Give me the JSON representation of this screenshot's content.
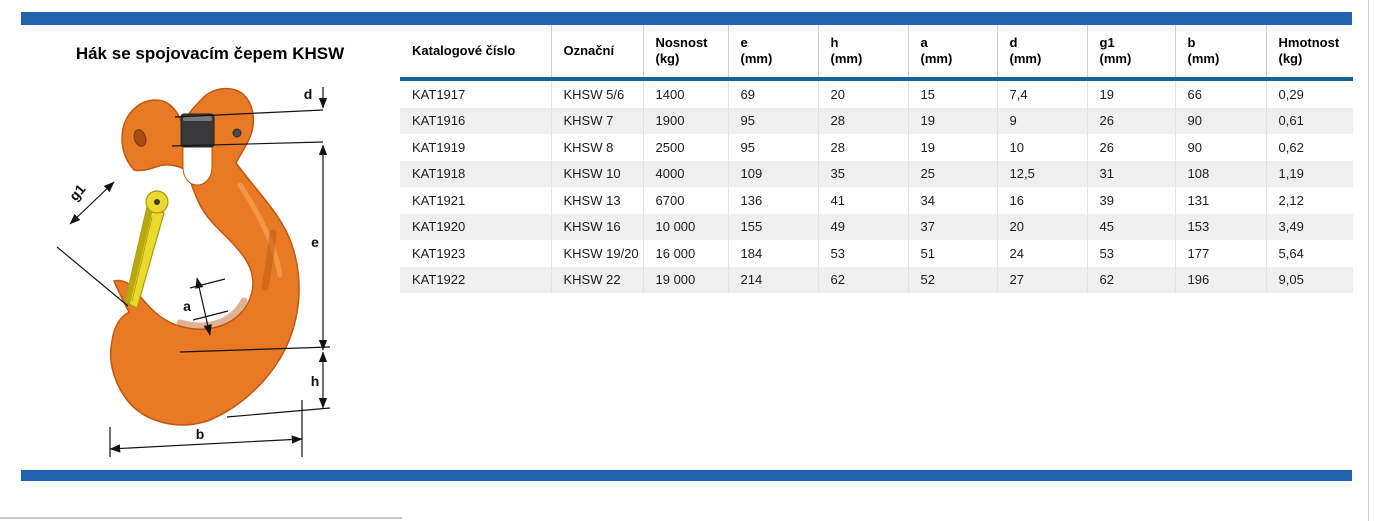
{
  "page": {
    "title": "Hák se spojovacím čepem KHSW"
  },
  "diagram": {
    "description": "orange clevis sling hook with yellow safety latch and dimension arrows",
    "dimension_labels": {
      "d": "d",
      "g1": "g1",
      "e": "e",
      "a": "a",
      "h": "h",
      "b": "b"
    }
  },
  "table": {
    "columns": [
      {
        "label": "Katalogové číslo",
        "unit": ""
      },
      {
        "label": "Označní",
        "unit": ""
      },
      {
        "label": "Nosnost",
        "unit": "(kg)"
      },
      {
        "label": "e",
        "unit": "(mm)"
      },
      {
        "label": "h",
        "unit": "(mm)"
      },
      {
        "label": "a",
        "unit": "(mm)"
      },
      {
        "label": "d",
        "unit": "(mm)"
      },
      {
        "label": "g1",
        "unit": "(mm)"
      },
      {
        "label": "b",
        "unit": "(mm)"
      },
      {
        "label": "Hmotnost",
        "unit": "(kg)"
      }
    ],
    "rows": [
      [
        "KAT1917",
        "KHSW 5/6",
        "1400",
        "69",
        "20",
        "15",
        "7,4",
        "19",
        "66",
        "0,29"
      ],
      [
        "KAT1916",
        "KHSW 7",
        "1900",
        "95",
        "28",
        "19",
        "9",
        "26",
        "90",
        "0,61"
      ],
      [
        "KAT1919",
        "KHSW 8",
        "2500",
        "95",
        "28",
        "19",
        "10",
        "26",
        "90",
        "0,62"
      ],
      [
        "KAT1918",
        "KHSW 10",
        "4000",
        "109",
        "35",
        "25",
        "12,5",
        "31",
        "108",
        "1,19"
      ],
      [
        "KAT1921",
        "KHSW 13",
        "6700",
        "136",
        "41",
        "34",
        "16",
        "39",
        "131",
        "2,12"
      ],
      [
        "KAT1920",
        "KHSW 16",
        "10 000",
        "155",
        "49",
        "37",
        "20",
        "45",
        "153",
        "3,49"
      ],
      [
        "KAT1923",
        "KHSW 19/20",
        "16 000",
        "184",
        "53",
        "51",
        "24",
        "53",
        "177",
        "5,64"
      ],
      [
        "KAT1922",
        "KHSW 22",
        "19 000",
        "214",
        "62",
        "52",
        "27",
        "62",
        "196",
        "9,05"
      ]
    ]
  },
  "colors": {
    "accent_blue": "#2062ae",
    "header_rule": "#16639b",
    "row_stripe": "#efefef",
    "hook_orange": "#e87a25",
    "latch_yellow": "#ecd92f",
    "pin_dark": "#39393b"
  }
}
